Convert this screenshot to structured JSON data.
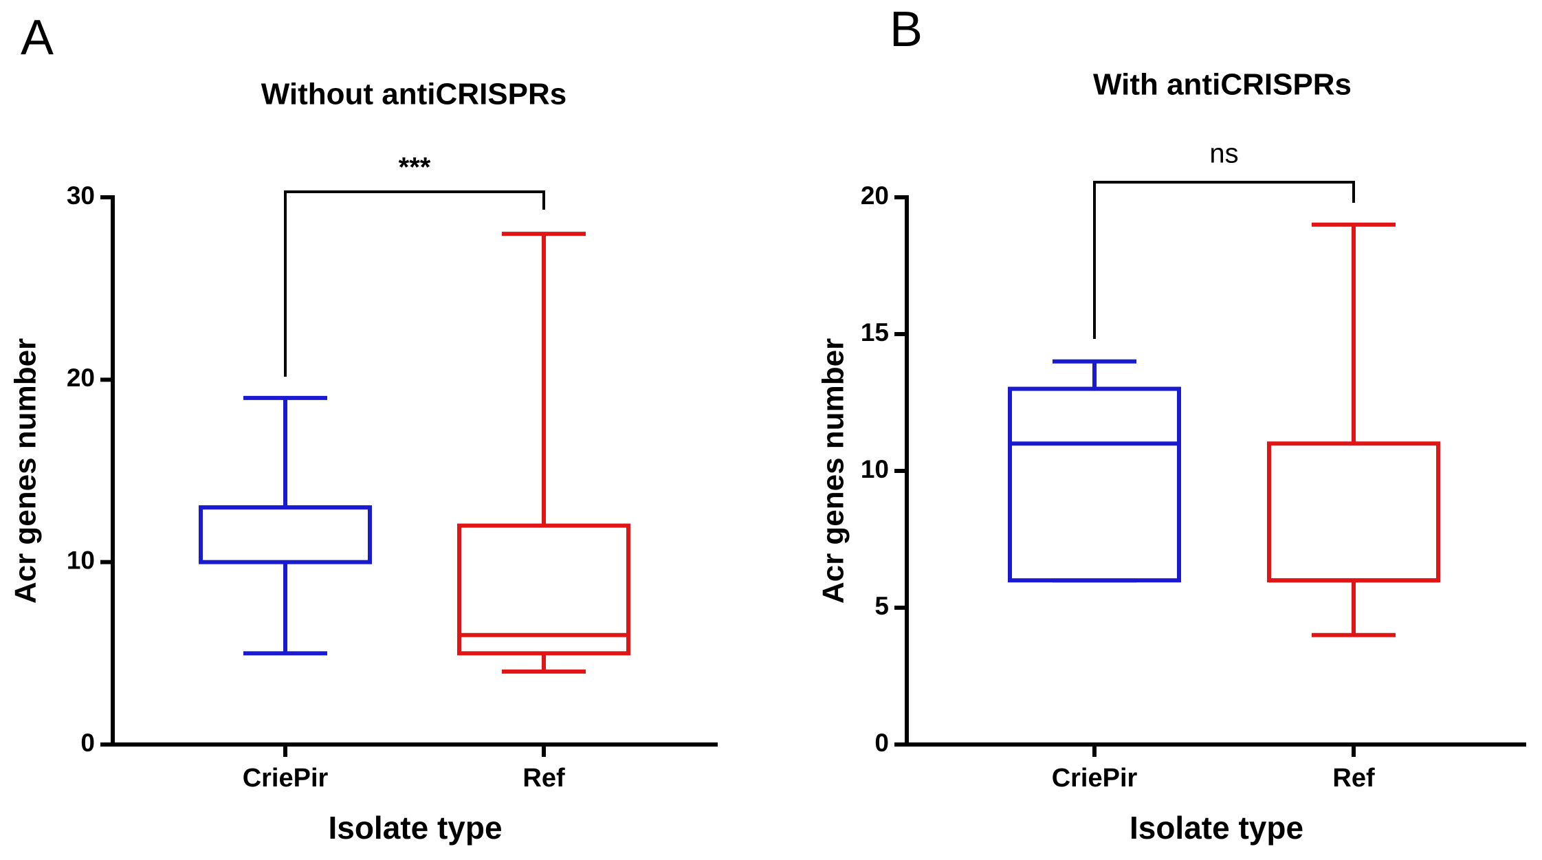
{
  "chart_data": [
    {
      "type": "box",
      "panel": "A",
      "title": "Without antiCRISPRs",
      "xlabel": "Isolate type",
      "ylabel": "Acr genes number",
      "categories": [
        "CriePir",
        "Ref"
      ],
      "colors": [
        "#1a1ad0",
        "#e01515"
      ],
      "boxes": [
        {
          "min": 5,
          "q1": 10,
          "median": 13,
          "q3": 13,
          "max": 19
        },
        {
          "min": 4,
          "q1": 5,
          "median": 6,
          "q3": 12,
          "max": 28
        }
      ],
      "ylim": [
        0,
        30
      ],
      "yticks": [
        0,
        10,
        20,
        30
      ],
      "annotation": "***"
    },
    {
      "type": "box",
      "panel": "B",
      "title": "With antiCRISPRs",
      "xlabel": "Isolate type",
      "ylabel": "Acr genes number",
      "categories": [
        "CriePir",
        "Ref"
      ],
      "colors": [
        "#1a1ad0",
        "#e01515"
      ],
      "boxes": [
        {
          "min": 6,
          "q1": 6,
          "median": 11,
          "q3": 13,
          "max": 14
        },
        {
          "min": 4,
          "q1": 6,
          "median": 6,
          "q3": 11,
          "max": 19
        }
      ],
      "ylim": [
        0,
        20
      ],
      "yticks": [
        0,
        5,
        10,
        15,
        20
      ],
      "annotation": "ns"
    }
  ]
}
